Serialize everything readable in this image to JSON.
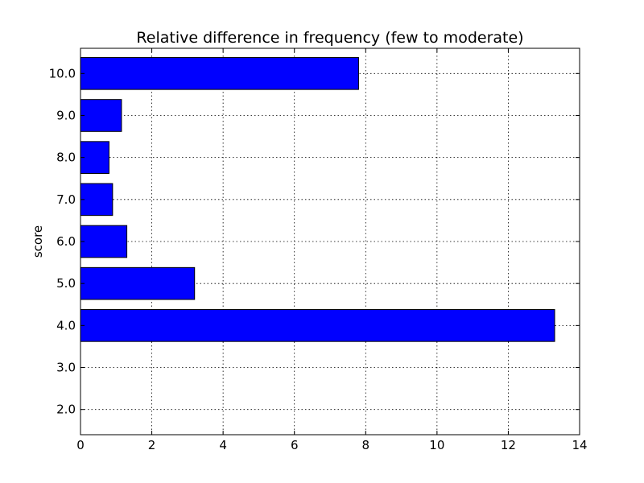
{
  "chart_data": {
    "type": "bar",
    "orientation": "horizontal",
    "title": "Relative difference in frequency (few to moderate)",
    "xlabel": "",
    "ylabel": "score",
    "categories": [
      "2.0",
      "3.0",
      "4.0",
      "5.0",
      "6.0",
      "7.0",
      "8.0",
      "9.0",
      "10.0"
    ],
    "values": [
      0.0,
      0.0,
      13.3,
      3.2,
      1.3,
      0.9,
      0.8,
      1.15,
      7.8
    ],
    "xlim": [
      0,
      14
    ],
    "xticks": [
      "0",
      "2",
      "4",
      "6",
      "8",
      "10",
      "12",
      "14"
    ],
    "grid": true,
    "bar_color": "#0000ff"
  }
}
